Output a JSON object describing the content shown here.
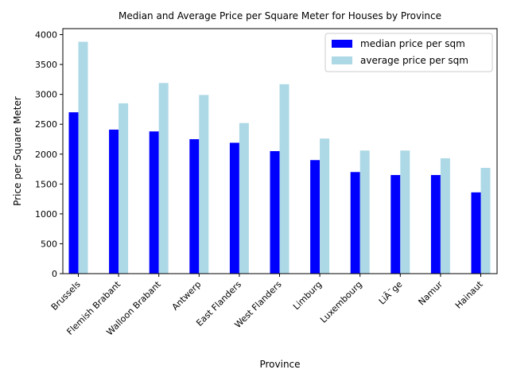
{
  "chart_data": {
    "type": "bar",
    "title": "Median and Average Price per Square Meter for Houses by Province",
    "xlabel": "Province",
    "ylabel": "Price per Square Meter",
    "ylim": [
      0,
      4100
    ],
    "yticks": [
      0,
      500,
      1000,
      1500,
      2000,
      2500,
      3000,
      3500,
      4000
    ],
    "categories": [
      "Brussels",
      "Flemish Brabant",
      "Walloon Brabant",
      "Antwerp",
      "East Flanders",
      "West Flanders",
      "Limburg",
      "Luxembourg",
      "LiÃ¨ge",
      "Namur",
      "Hainaut"
    ],
    "series": [
      {
        "name": "median price per sqm",
        "color": "#0000ff",
        "values": [
          2700,
          2410,
          2380,
          2250,
          2190,
          2050,
          1900,
          1700,
          1650,
          1650,
          1360
        ]
      },
      {
        "name": "average price per sqm",
        "color": "#add8e6",
        "values": [
          3880,
          2850,
          3190,
          2990,
          2520,
          3170,
          2260,
          2060,
          2060,
          1930,
          1770
        ]
      }
    ],
    "grid": false,
    "legend_position": "top-right"
  }
}
